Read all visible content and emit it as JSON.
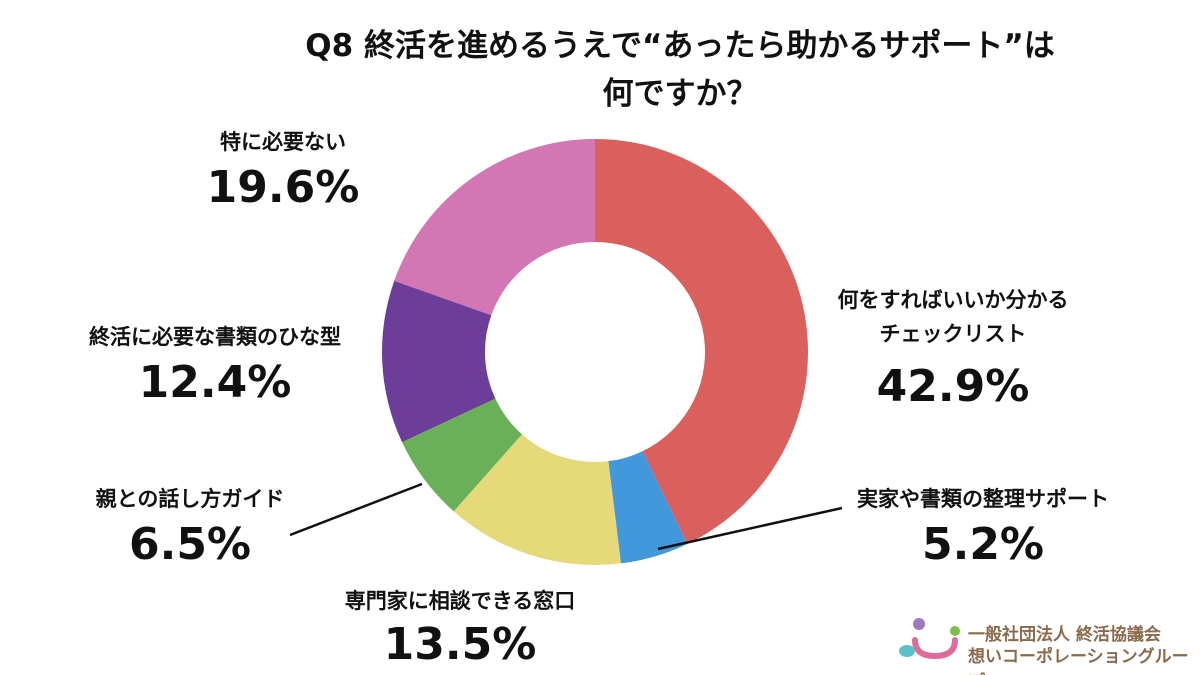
{
  "chart_data": {
    "type": "pie",
    "donut": true,
    "title": "Q8 終活を進めるうえで“あったら助かるサポート”は何ですか？",
    "categories": [
      "何をすればいいか分かるチェックリスト",
      "実家や書類の整理サポート",
      "専門家に相談できる窓口",
      "親との話し方ガイド",
      "終活に必要な書類のひな型",
      "特に必要ない"
    ],
    "values": [
      42.9,
      5.2,
      13.5,
      6.5,
      12.4,
      19.6
    ],
    "value_labels": [
      "42.9%",
      "5.2%",
      "13.5%",
      "6.5%",
      "12.4%",
      "19.6%"
    ],
    "colors": [
      "#d9605c",
      "#4398dc",
      "#e5d97a",
      "#6ab058",
      "#6d3d9a",
      "#d277b4"
    ]
  },
  "logo": {
    "line1": "一般社団法人 終活協議会",
    "line2": "想いコーポレーショングループ"
  }
}
